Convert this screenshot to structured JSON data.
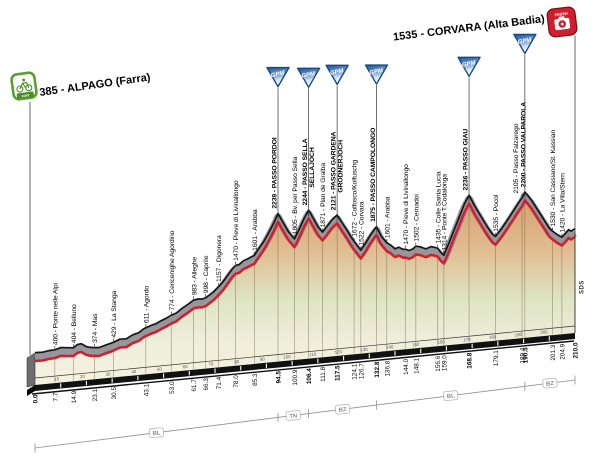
{
  "start": {
    "label": "385 - ALPAGO (Farra)",
    "icon_label": "start"
  },
  "finish": {
    "label": "1535 - CORVARA (Alta Badia)",
    "icon_label": "FINISH"
  },
  "branding": "SDS",
  "colors": {
    "profile_red": "#cf2030",
    "crust_gray": "#97979b",
    "fill_high": "#d5a06f",
    "fill_mid_high": "#e1bd92",
    "fill_mid": "#dde4c2",
    "fill_low": "#efeedb",
    "fill_base": "#f6f3e1",
    "gpm_blue": "#1d5296",
    "gpm_border": "#174a85",
    "start_green": "#5aa02c",
    "finish_red": "#cf1f2e"
  },
  "chart_data": {
    "type": "area",
    "x_unit": "km",
    "y_unit": "m",
    "x_range": [
      0,
      210
    ],
    "km_tick_step": 10,
    "gpm_label": "GPM",
    "points": [
      {
        "km": 0.0,
        "elev": 385,
        "label": null
      },
      {
        "km": 7.7,
        "elev": 400,
        "label": "400 - Ponte nelle Alpi"
      },
      {
        "km": 14.9,
        "elev": 404,
        "label": "404 - Belluno"
      },
      {
        "km": 23.1,
        "elev": 374,
        "label": "374 - Mas"
      },
      {
        "km": 30.5,
        "elev": 429,
        "label": "429 - La Stanga"
      },
      {
        "km": 43.1,
        "elev": 611,
        "label": "611 - Agordo"
      },
      {
        "km": 53.0,
        "elev": 774,
        "label": "774 - Cencenighe Agordino"
      },
      {
        "km": 61.7,
        "elev": 983,
        "label": "983 - Alleghe"
      },
      {
        "km": 66.3,
        "elev": 998,
        "label": "998 - Caprile"
      },
      {
        "km": 71.4,
        "elev": 1157,
        "label": "1157 - Digonera"
      },
      {
        "km": 78.0,
        "elev": 1470,
        "label": "1470 - Pieve di Livinallongo"
      },
      {
        "km": 85.3,
        "elev": 1601,
        "label": "1601 - Arabba"
      },
      {
        "km": 94.5,
        "elev": 2239,
        "label": "2239 - PASSO PORDOI",
        "gpm": true
      },
      {
        "km": 100.9,
        "elev": 1805,
        "label": "1805 - Bv. per Passo Sella"
      },
      {
        "km": 106.4,
        "elev": 2244,
        "label": "2244 - PASSO SELLA",
        "label2": "SELLAJOCH",
        "gpm": true
      },
      {
        "km": 111.8,
        "elev": 1871,
        "label": "1871 - Plan de Gralba"
      },
      {
        "km": 117.5,
        "elev": 2121,
        "label": "2121 - PASSO GARDENA",
        "label2": "GRÖDNERJOCH",
        "gpm": true
      },
      {
        "km": 124.1,
        "elev": 1672,
        "label": "1672 - Colfosco/Kolfuschg"
      },
      {
        "km": 126.7,
        "elev": 1522,
        "label": "1522 - Corvara"
      },
      {
        "km": 132.8,
        "elev": 1875,
        "label": "1875 - PASSO CAMPOLONGO",
        "gpm": true
      },
      {
        "km": 136.8,
        "elev": 1601,
        "label": "1601 - Arabba"
      },
      {
        "km": 144.0,
        "elev": 1470,
        "label": "1470 - Pieve di Livinallongo"
      },
      {
        "km": 148.1,
        "elev": 1502,
        "label": "1502 - Cernadoi"
      },
      {
        "km": 156.6,
        "elev": 1435,
        "label": "1435 - Colle Santa Lucia"
      },
      {
        "km": 159.0,
        "elev": 1314,
        "label": "1314 - Ponte T.Codalonga"
      },
      {
        "km": 168.8,
        "elev": 2236,
        "label": "2236 - PASSO GIAU",
        "gpm": true
      },
      {
        "km": 179.1,
        "elev": 1535,
        "label": "1535 - Pocol"
      },
      {
        "km": 189.4,
        "elev": 2105,
        "label": "2105 - Passo Falzarego"
      },
      {
        "km": 190.5,
        "elev": 2200,
        "label": "2200 - PASSO VALPAROLA",
        "gpm": true
      },
      {
        "km": 201.3,
        "elev": 1530,
        "label": "1530 - San Cassiano/St. Kassian"
      },
      {
        "km": 204.9,
        "elev": 1420,
        "label": "1420 - La Villa/Stern"
      },
      {
        "km": 210.0,
        "elev": 1535,
        "label": null
      }
    ],
    "profile": [
      [
        0,
        385
      ],
      [
        3,
        380
      ],
      [
        5.5,
        396
      ],
      [
        7.7,
        400
      ],
      [
        10,
        426
      ],
      [
        12.5,
        414
      ],
      [
        14.9,
        404
      ],
      [
        16.5,
        448
      ],
      [
        18,
        456
      ],
      [
        20,
        402
      ],
      [
        21.5,
        384
      ],
      [
        23.1,
        374
      ],
      [
        25,
        368
      ],
      [
        27.5,
        396
      ],
      [
        30.5,
        429
      ],
      [
        33,
        470
      ],
      [
        35.5,
        466
      ],
      [
        38,
        520
      ],
      [
        40.5,
        546
      ],
      [
        42,
        592
      ],
      [
        43.1,
        611
      ],
      [
        45,
        640
      ],
      [
        47,
        662
      ],
      [
        49,
        700
      ],
      [
        51,
        732
      ],
      [
        53,
        774
      ],
      [
        55,
        802
      ],
      [
        57,
        862
      ],
      [
        59.5,
        922
      ],
      [
        61.7,
        983
      ],
      [
        63.5,
        992
      ],
      [
        65,
        986
      ],
      [
        66.3,
        998
      ],
      [
        68,
        1042
      ],
      [
        69.5,
        1084
      ],
      [
        70.5,
        1122
      ],
      [
        71.4,
        1157
      ],
      [
        73,
        1222
      ],
      [
        74.5,
        1302
      ],
      [
        76,
        1382
      ],
      [
        77,
        1432
      ],
      [
        78,
        1470
      ],
      [
        79.5,
        1482
      ],
      [
        81,
        1532
      ],
      [
        83,
        1562
      ],
      [
        84,
        1582
      ],
      [
        85.3,
        1601
      ],
      [
        87,
        1702
      ],
      [
        89,
        1812
      ],
      [
        91,
        1952
      ],
      [
        93,
        2102
      ],
      [
        94.5,
        2239
      ],
      [
        96.5,
        2082
      ],
      [
        98.5,
        1932
      ],
      [
        100.9,
        1805
      ],
      [
        102.5,
        1932
      ],
      [
        104.5,
        2102
      ],
      [
        106.4,
        2244
      ],
      [
        108.5,
        2082
      ],
      [
        110,
        1962
      ],
      [
        111.8,
        1871
      ],
      [
        113.5,
        1952
      ],
      [
        115.5,
        2052
      ],
      [
        117.5,
        2121
      ],
      [
        119.5,
        1982
      ],
      [
        121.5,
        1852
      ],
      [
        123,
        1742
      ],
      [
        124.1,
        1672
      ],
      [
        125.5,
        1592
      ],
      [
        126.7,
        1522
      ],
      [
        128.5,
        1622
      ],
      [
        130.5,
        1752
      ],
      [
        132.8,
        1875
      ],
      [
        134.5,
        1722
      ],
      [
        136.8,
        1601
      ],
      [
        138.5,
        1552
      ],
      [
        140,
        1492
      ],
      [
        141.5,
        1512
      ],
      [
        143,
        1472
      ],
      [
        144,
        1470
      ],
      [
        145.5,
        1442
      ],
      [
        147,
        1462
      ],
      [
        148.1,
        1502
      ],
      [
        150,
        1482
      ],
      [
        152,
        1442
      ],
      [
        154,
        1472
      ],
      [
        155.5,
        1452
      ],
      [
        156.6,
        1435
      ],
      [
        157.8,
        1362
      ],
      [
        159,
        1314
      ],
      [
        161,
        1502
      ],
      [
        163,
        1702
      ],
      [
        165,
        1902
      ],
      [
        167,
        2102
      ],
      [
        168.8,
        2236
      ],
      [
        171,
        2052
      ],
      [
        173.5,
        1872
      ],
      [
        176,
        1692
      ],
      [
        178,
        1572
      ],
      [
        179.1,
        1535
      ],
      [
        181.5,
        1652
      ],
      [
        184,
        1792
      ],
      [
        186.5,
        1942
      ],
      [
        188.5,
        2062
      ],
      [
        189.4,
        2105
      ],
      [
        190.5,
        2200
      ],
      [
        193,
        2062
      ],
      [
        195.5,
        1892
      ],
      [
        198,
        1722
      ],
      [
        200,
        1582
      ],
      [
        201.3,
        1530
      ],
      [
        203,
        1472
      ],
      [
        204.9,
        1420
      ],
      [
        206.5,
        1482
      ],
      [
        207.5,
        1532
      ],
      [
        208.5,
        1502
      ],
      [
        209.3,
        1522
      ],
      [
        210,
        1535
      ]
    ],
    "provinces": [
      {
        "label": "BL",
        "from": 0,
        "to": 94.5
      },
      {
        "label": "TN",
        "from": 94.5,
        "to": 106.4
      },
      {
        "label": "BZ",
        "from": 106.4,
        "to": 132.8
      },
      {
        "label": "BL",
        "from": 132.8,
        "to": 190.5
      },
      {
        "label": "BZ",
        "from": 190.5,
        "to": 210
      }
    ]
  }
}
